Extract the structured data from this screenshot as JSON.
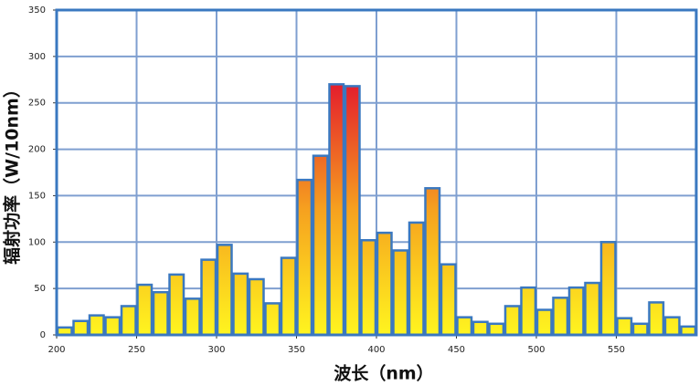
{
  "chart_data": {
    "type": "histogram",
    "xlabel": "波长（nm）",
    "ylabel": "辐射功率（W/10nm）",
    "bins": [
      200,
      210,
      220,
      230,
      240,
      250,
      260,
      270,
      280,
      290,
      300,
      310,
      320,
      330,
      340,
      350,
      360,
      370,
      380,
      390,
      400,
      410,
      420,
      430,
      440,
      450,
      460,
      470,
      480,
      490,
      500,
      510,
      520,
      530,
      540,
      550,
      560,
      570,
      580,
      590,
      600
    ],
    "values": [
      8,
      15,
      21,
      19,
      31,
      54,
      46,
      65,
      39,
      81,
      97,
      66,
      60,
      34,
      83,
      167,
      193,
      270,
      268,
      102,
      110,
      91,
      121,
      158,
      76,
      19,
      14,
      12,
      31,
      51,
      27,
      40,
      51,
      56,
      100,
      18,
      12,
      35,
      19,
      9
    ],
    "xlim": [
      200,
      600
    ],
    "xticks": [
      200,
      250,
      300,
      350,
      400,
      450,
      500,
      550
    ],
    "ylim": [
      0,
      350
    ],
    "yticks": [
      0,
      50,
      100,
      150,
      200,
      250,
      300,
      350
    ],
    "grid": true,
    "grid_color": "#7f9fd0",
    "edge_color": "#3a78c0",
    "gradient": [
      "#fff51f",
      "#f6a21f",
      "#e4202c"
    ]
  }
}
